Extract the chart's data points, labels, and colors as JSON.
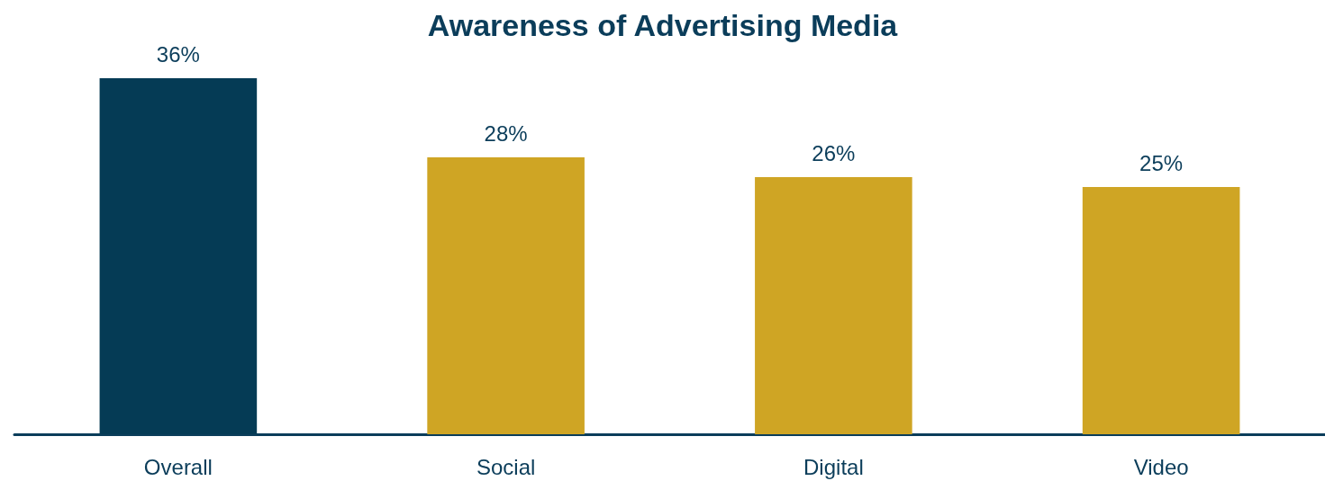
{
  "chart_data": {
    "type": "bar",
    "title": "Awareness of Advertising Media",
    "categories": [
      "Overall",
      "Social",
      "Digital",
      "Video"
    ],
    "values": [
      36,
      28,
      26,
      25
    ],
    "colors": [
      "#053b55",
      "#cfa524",
      "#cfa524",
      "#cfa524"
    ],
    "value_labels": [
      "36%",
      "28%",
      "26%",
      "25%"
    ]
  }
}
